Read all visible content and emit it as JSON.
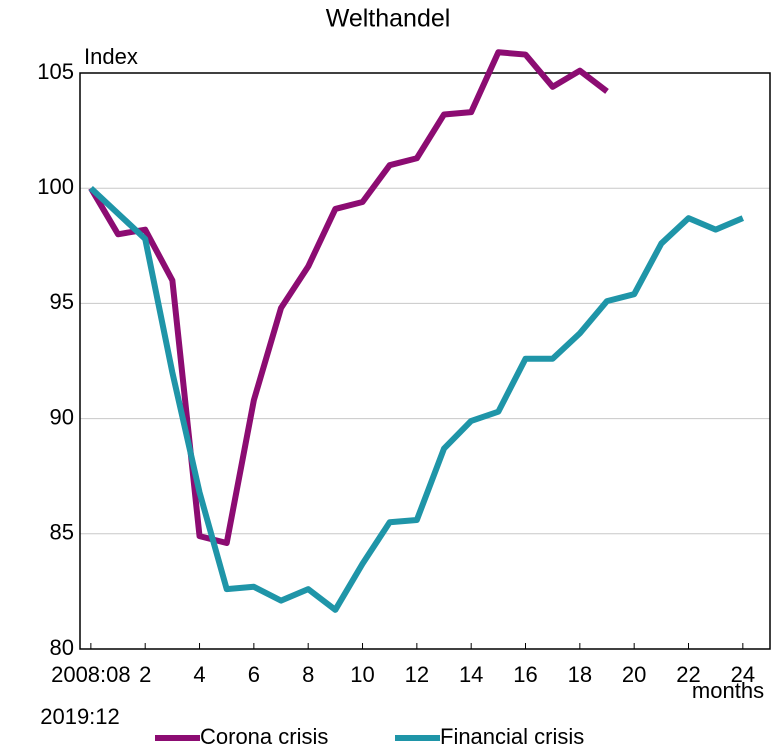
{
  "chart_data": {
    "type": "line",
    "title": "Welthandel",
    "y_label": "Index",
    "x_label": "months",
    "x_note": "2019:12",
    "x": [
      0,
      1,
      2,
      3,
      4,
      5,
      6,
      7,
      8,
      9,
      10,
      11,
      12,
      13,
      14,
      15,
      16,
      17,
      18,
      19,
      20,
      21,
      22,
      23,
      24
    ],
    "series": [
      {
        "name": "Corona crisis",
        "color": "#8c0c72",
        "values": [
          100,
          98.0,
          98.2,
          96.0,
          84.9,
          84.6,
          90.8,
          94.8,
          96.6,
          99.1,
          99.4,
          101.0,
          101.3,
          103.2,
          103.3,
          105.9,
          105.8,
          104.4,
          105.1,
          104.2,
          null,
          null,
          null,
          null,
          null
        ]
      },
      {
        "name": "Financial crisis",
        "color": "#1f95a8",
        "values": [
          100,
          98.9,
          97.8,
          92.0,
          86.8,
          82.6,
          82.7,
          82.1,
          82.6,
          81.7,
          83.7,
          85.5,
          85.6,
          88.7,
          89.9,
          90.3,
          92.6,
          92.6,
          93.7,
          95.1,
          95.4,
          97.6,
          98.7,
          98.2,
          98.7
        ]
      }
    ],
    "xlim": [
      -0.4,
      25
    ],
    "ylim": [
      80,
      105
    ],
    "xticks": [
      {
        "value": 0,
        "label": "2008:08"
      },
      2,
      4,
      6,
      8,
      10,
      12,
      14,
      16,
      18,
      20,
      22,
      24
    ],
    "yticks": [
      80,
      85,
      90,
      95,
      100,
      105
    ],
    "grid": true,
    "legend": "bottom"
  }
}
